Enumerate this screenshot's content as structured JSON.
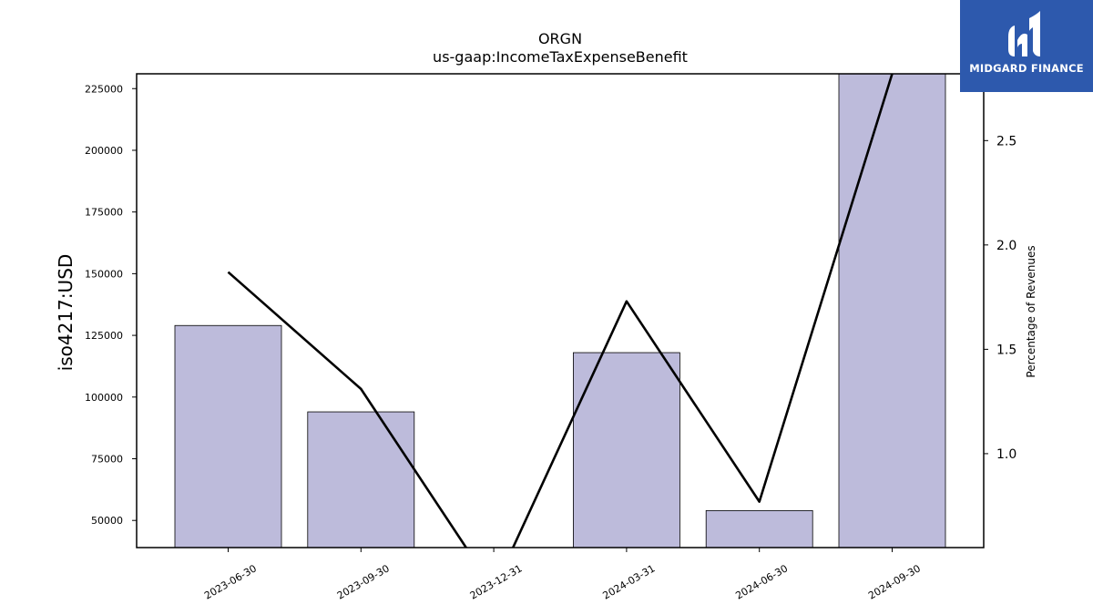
{
  "chart_data": {
    "type": "bar",
    "title": "ORGN",
    "subtitle": "us-gaap:IncomeTaxExpenseBenefit",
    "ylabel": "iso4217:USD",
    "y2label": "Percentage of Revenues",
    "categories": [
      "2023-06-30",
      "2023-09-30",
      "2023-12-31",
      "2024-03-31",
      "2024-06-30",
      "2024-09-30"
    ],
    "ylim": [
      39000,
      231000
    ],
    "y_ticks": [
      "50000",
      "75000",
      "100000",
      "125000",
      "150000",
      "175000",
      "200000",
      "225000"
    ],
    "y2lim": [
      0.55,
      2.82
    ],
    "y2_ticks": [
      "1.0",
      "1.5",
      "2.0",
      "2.5"
    ],
    "series": [
      {
        "kind": "bar",
        "values": [
          129000,
          94000,
          null,
          118000,
          54000,
          231000
        ],
        "color": "#bdbbdb"
      },
      {
        "kind": "line",
        "axis": "right",
        "values": [
          1.87,
          1.31,
          0.35,
          1.73,
          0.77,
          2.82
        ],
        "color": "#000000"
      }
    ],
    "grid": false
  },
  "logo": {
    "text": "MIDGARD FINANCE",
    "color": "#2d59ad"
  }
}
